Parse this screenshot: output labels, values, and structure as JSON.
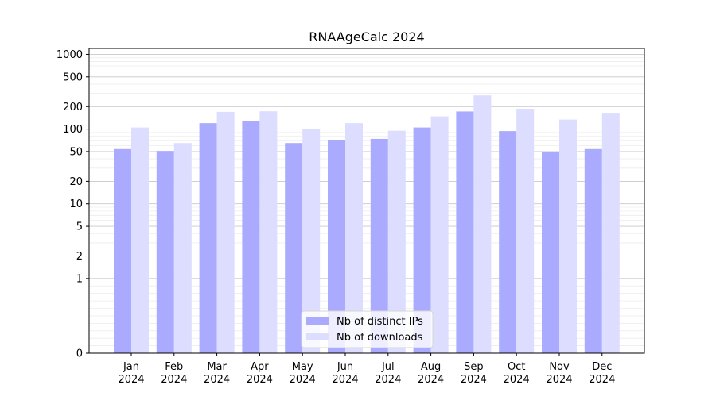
{
  "chart_data": {
    "type": "bar",
    "title": "RNAAgeCalc 2024",
    "xlabel": "",
    "ylabel": "",
    "yscale": "symlog",
    "ylim": [
      0,
      1200
    ],
    "yticks": [
      0,
      1,
      2,
      5,
      10,
      20,
      50,
      100,
      200,
      500,
      1000
    ],
    "categories": [
      "Jan\n2024",
      "Feb\n2024",
      "Mar\n2024",
      "Apr\n2024",
      "May\n2024",
      "Jun\n2024",
      "Jul\n2024",
      "Aug\n2024",
      "Sep\n2024",
      "Oct\n2024",
      "Nov\n2024",
      "Dec\n2024"
    ],
    "series": [
      {
        "name": "Nb of distinct IPs",
        "color": "#aaaaff",
        "values": [
          54,
          51,
          120,
          127,
          65,
          71,
          74,
          105,
          172,
          94,
          49,
          54
        ]
      },
      {
        "name": "Nb of downloads",
        "color": "#ddddff",
        "values": [
          105,
          65,
          170,
          173,
          101,
          120,
          95,
          148,
          282,
          187,
          134,
          161
        ]
      }
    ],
    "grid": true,
    "legend_position": "bottom-center"
  }
}
